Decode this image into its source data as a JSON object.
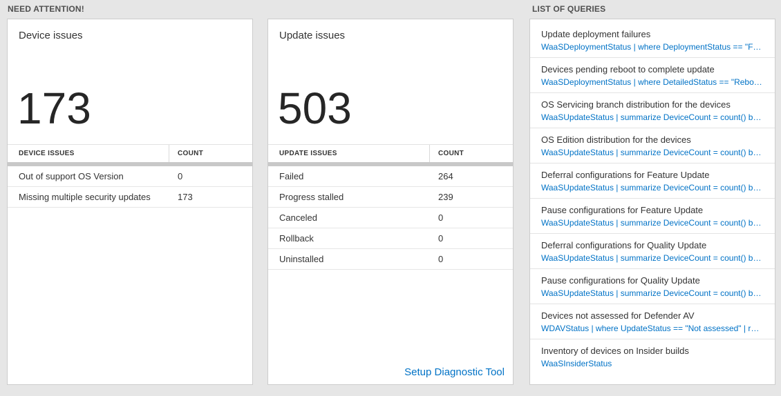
{
  "colors": {
    "accent_blue": "#0072c6",
    "background": "#e6e6e6",
    "number_text": "#262626"
  },
  "headers": {
    "need_attention": "NEED ATTENTION!",
    "list_of_queries": "LIST OF QUERIES"
  },
  "device_card": {
    "title": "Device issues",
    "count": "173",
    "table": {
      "headers": [
        "DEVICE ISSUES",
        "COUNT"
      ],
      "rows": [
        {
          "label": "Out of support OS Version",
          "count": "0"
        },
        {
          "label": "Missing multiple security updates",
          "count": "173"
        }
      ]
    }
  },
  "update_card": {
    "title": "Update issues",
    "count": "503",
    "table": {
      "headers": [
        "UPDATE ISSUES",
        "COUNT"
      ],
      "rows": [
        {
          "label": "Failed",
          "count": "264"
        },
        {
          "label": "Progress stalled",
          "count": "239"
        },
        {
          "label": "Canceled",
          "count": "0"
        },
        {
          "label": "Rollback",
          "count": "0"
        },
        {
          "label": "Uninstalled",
          "count": "0"
        }
      ]
    },
    "link": "Setup Diagnostic Tool"
  },
  "queries": {
    "items": [
      {
        "title": "Update deployment failures",
        "query": "WaaSDeploymentStatus | where DeploymentStatus == \"Failed\" |..."
      },
      {
        "title": "Devices pending reboot to complete update",
        "query": "WaaSDeploymentStatus | where DetailedStatus == \"Reboot pend..."
      },
      {
        "title": "OS Servicing branch distribution for the devices",
        "query": "WaaSUpdateStatus | summarize DeviceCount = count() by OSSer..."
      },
      {
        "title": "OS Edition distribution for the devices",
        "query": "WaaSUpdateStatus | summarize DeviceCount = count() by OSEdit..."
      },
      {
        "title": "Deferral configurations for Feature Update",
        "query": "WaaSUpdateStatus | summarize DeviceCount = count() by Featur..."
      },
      {
        "title": "Pause configurations for Feature Update",
        "query": "WaaSUpdateStatus | summarize DeviceCount = count() by Featur..."
      },
      {
        "title": "Deferral configurations for Quality Update",
        "query": "WaaSUpdateStatus | summarize DeviceCount = count() by Qualit..."
      },
      {
        "title": "Pause configurations for Quality Update",
        "query": "WaaSUpdateStatus | summarize DeviceCount = count() by Qualit..."
      },
      {
        "title": "Devices not assessed for Defender AV",
        "query": "WDAVStatus | where UpdateStatus == \"Not assessed\" | render ta..."
      },
      {
        "title": "Inventory of devices on Insider builds",
        "query": "WaaSInsiderStatus"
      }
    ]
  }
}
